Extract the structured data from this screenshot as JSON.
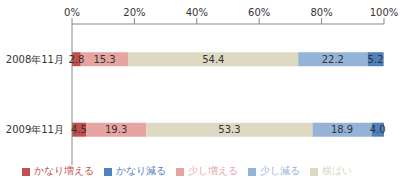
{
  "chart_data": {
    "type": "bar",
    "orientation": "horizontal",
    "stacked": true,
    "data_labels": true,
    "grid": false,
    "legend": "bottom",
    "categories": [
      "2008年11月",
      "2009年11月"
    ],
    "series": [
      {
        "name": "かなり増える",
        "color": "#c0504d",
        "values": [
          2.8,
          4.5
        ],
        "value_labels": [
          "2.8",
          "4.5"
        ]
      },
      {
        "name": "少し増える",
        "color": "#e6a5a3",
        "values": [
          15.3,
          19.3
        ],
        "value_labels": [
          "15.3",
          "19.3"
        ]
      },
      {
        "name": "横ばい",
        "color": "#ddd9c3",
        "values": [
          54.4,
          53.3
        ],
        "value_labels": [
          "54.4",
          "53.3"
        ]
      },
      {
        "name": "少し減る",
        "color": "#95b3d7",
        "values": [
          22.2,
          18.9
        ],
        "value_labels": [
          "22.2",
          "18.9"
        ]
      },
      {
        "name": "かなり減る",
        "color": "#4f81bd",
        "values": [
          5.2,
          4.0
        ],
        "value_labels": [
          "5.2",
          "4.0"
        ]
      }
    ],
    "xlim": [
      0,
      100
    ],
    "xticks": [
      {
        "value": 0,
        "label": "0%"
      },
      {
        "value": 20,
        "label": "20%"
      },
      {
        "value": 40,
        "label": "40%"
      },
      {
        "value": 60,
        "label": "60%"
      },
      {
        "value": 80,
        "label": "80%"
      },
      {
        "value": 100,
        "label": "100%"
      }
    ]
  }
}
